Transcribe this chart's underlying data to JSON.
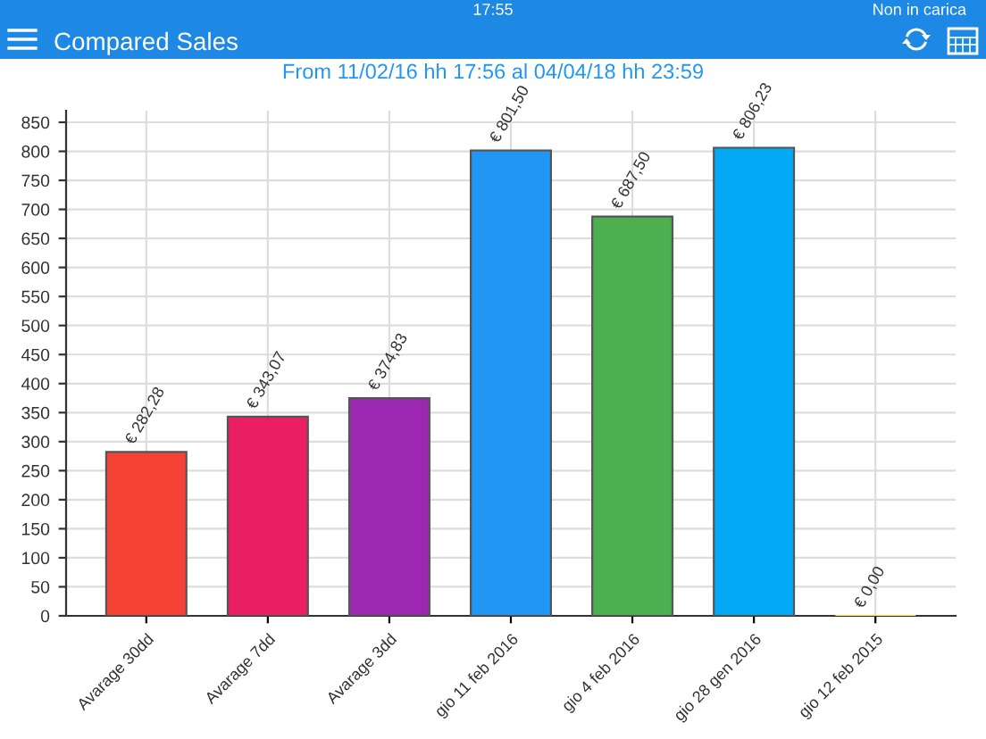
{
  "chart_data": {
    "type": "bar",
    "title": "Compared Sales",
    "subtitle": "From 11/02/16 hh 17:56 al 04/04/18 hh 23:59",
    "annotations": [
      "17:55",
      "Non in carica"
    ],
    "categories": [
      "Avarage 30dd",
      "Avarage 7dd",
      "Avarage 3dd",
      "gio 11 feb 2016",
      "gio 4 feb 2016",
      "gio 28 gen 2016",
      "gio 12 feb 2015"
    ],
    "values": [
      282.28,
      343.07,
      374.83,
      801.5,
      687.5,
      806.23,
      0
    ],
    "colors": [
      "#f44336",
      "#e91e63",
      "#9c27b0",
      "#2196f3",
      "#4caf50",
      "#03a9f4",
      "#ffeb3b"
    ],
    "value_labels": [
      "€ 282,28",
      "€ 343,07",
      "€ 374,83",
      "€ 801,50",
      "€ 687,50",
      "€ 806,23",
      "€ 0,00"
    ],
    "ylim": [
      0,
      870
    ],
    "yticks": [
      0,
      50,
      100,
      150,
      200,
      250,
      300,
      350,
      400,
      450,
      500,
      550,
      600,
      650,
      700,
      750,
      800,
      850
    ],
    "grid": true
  }
}
